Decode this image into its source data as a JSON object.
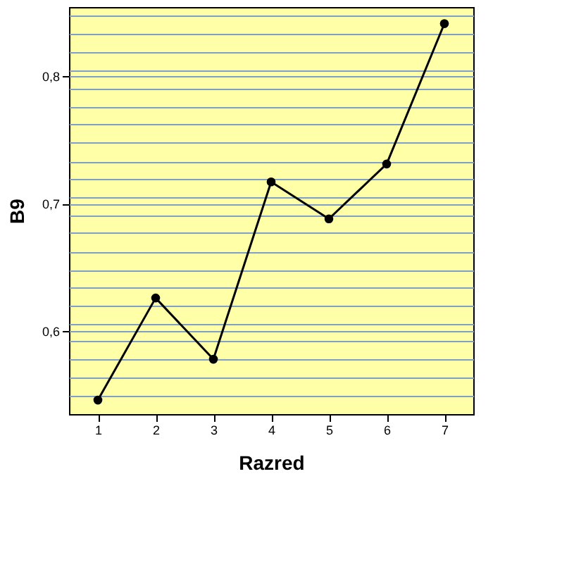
{
  "chart_data": {
    "type": "line",
    "xlabel": "Razred",
    "ylabel": "B9",
    "x": [
      1,
      2,
      3,
      4,
      5,
      6,
      7
    ],
    "series": [
      {
        "color": "#000000",
        "values": [
          0.546,
          0.626,
          0.578,
          0.717,
          0.688,
          0.731,
          0.841
        ]
      }
    ],
    "xlim": [
      0.5,
      7.5
    ],
    "xticks": [
      1,
      2,
      3,
      4,
      5,
      6,
      7
    ],
    "ylim": [
      0.535,
      0.854
    ],
    "yticks": [
      {
        "value": 0.549,
        "label": null
      },
      {
        "value": 0.564,
        "label": null
      },
      {
        "value": 0.578,
        "label": null
      },
      {
        "value": 0.592,
        "label": null
      },
      {
        "value": 0.6,
        "label": "0,6"
      },
      {
        "value": 0.606,
        "label": null
      },
      {
        "value": 0.62,
        "label": null
      },
      {
        "value": 0.634,
        "label": null
      },
      {
        "value": 0.648,
        "label": null
      },
      {
        "value": 0.662,
        "label": null
      },
      {
        "value": 0.677,
        "label": null
      },
      {
        "value": 0.691,
        "label": null
      },
      {
        "value": 0.7,
        "label": "0,7"
      },
      {
        "value": 0.705,
        "label": null
      },
      {
        "value": 0.719,
        "label": null
      },
      {
        "value": 0.733,
        "label": null
      },
      {
        "value": 0.748,
        "label": null
      },
      {
        "value": 0.762,
        "label": null
      },
      {
        "value": 0.776,
        "label": null
      },
      {
        "value": 0.79,
        "label": null
      },
      {
        "value": 0.8,
        "label": "0,8"
      },
      {
        "value": 0.804,
        "label": null
      },
      {
        "value": 0.819,
        "label": null
      },
      {
        "value": 0.833,
        "label": null
      },
      {
        "value": 0.847,
        "label": null
      }
    ],
    "grid": "y",
    "marker": "circle",
    "line_style": "solid"
  }
}
